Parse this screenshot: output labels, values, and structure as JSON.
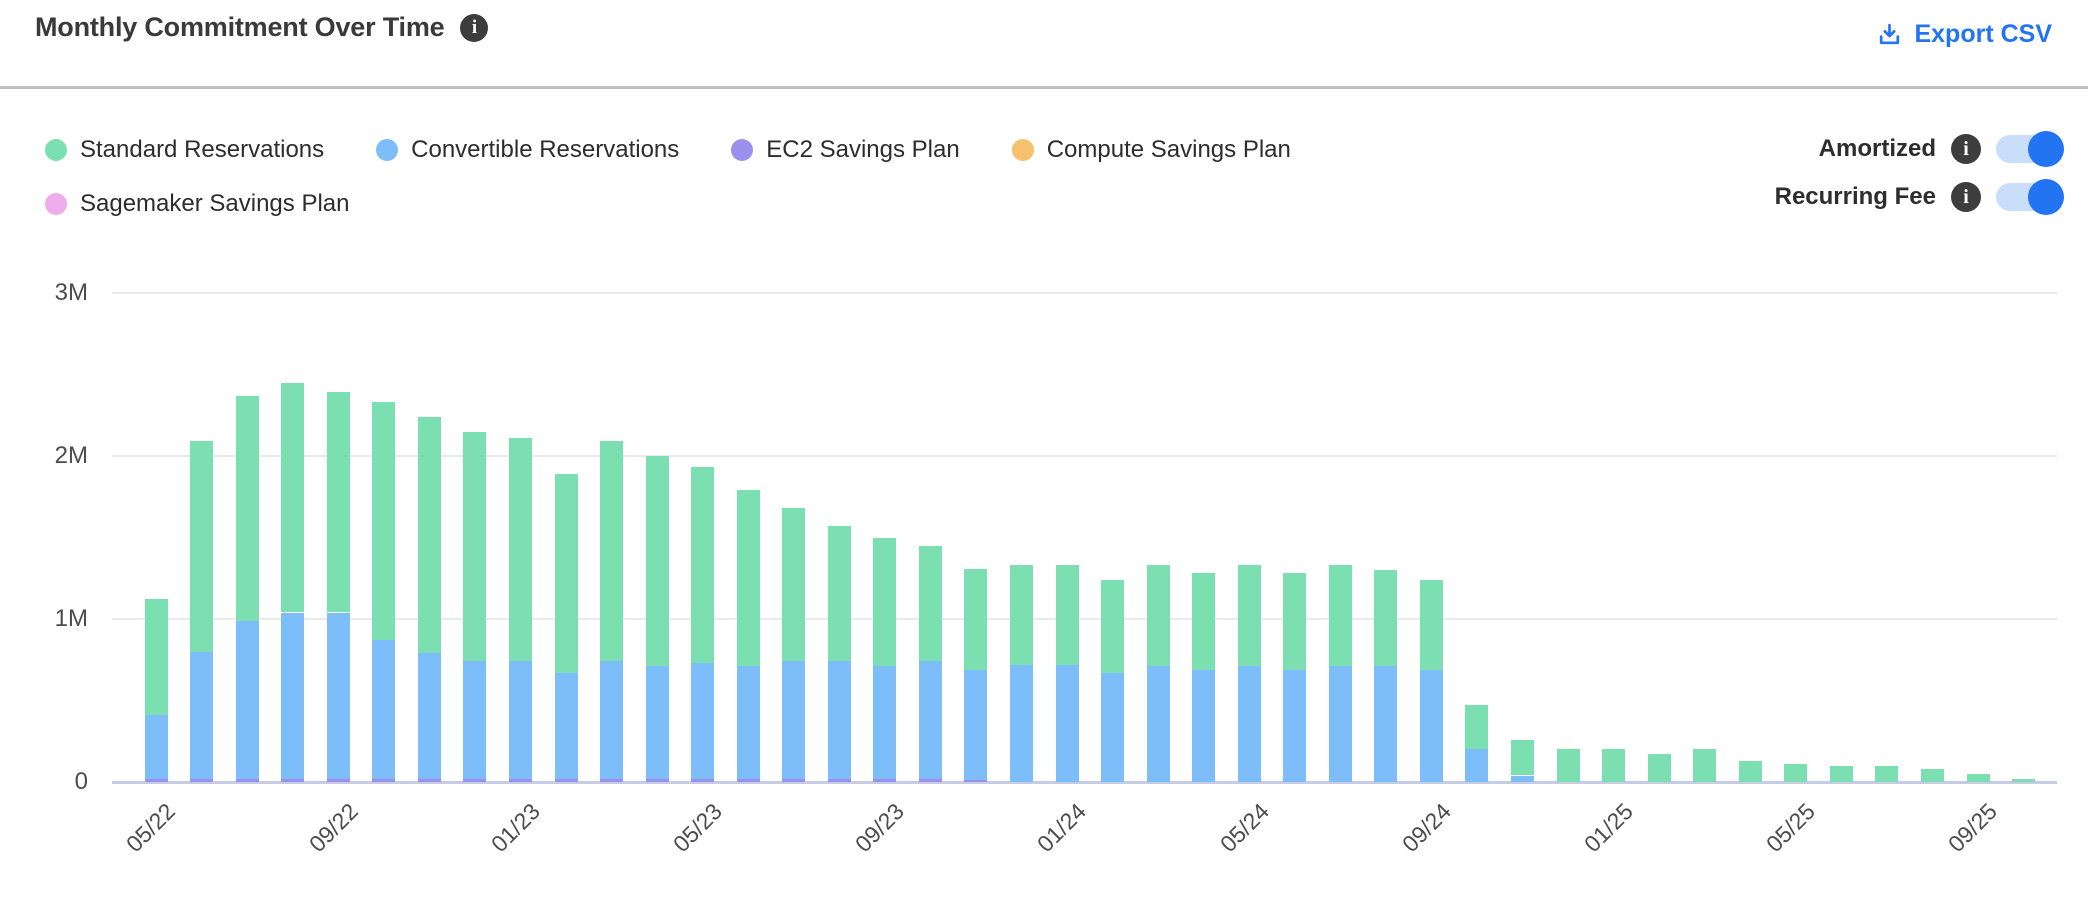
{
  "header": {
    "title": "Monthly Commitment Over Time",
    "export_label": "Export CSV"
  },
  "toggles": [
    {
      "label": "Amortized",
      "state": "on"
    },
    {
      "label": "Recurring Fee",
      "state": "on"
    }
  ],
  "colors": {
    "accent_blue": "#2374f2",
    "toggle_track": "#c9defb",
    "info_icon_bg": "#3d3d3d"
  },
  "chart_data": {
    "type": "bar",
    "stacked": true,
    "title": "Monthly Commitment Over Time",
    "unit": "M",
    "ylim": [
      0,
      3
    ],
    "grid": true,
    "legend_position": "top-left",
    "yticks": [
      {
        "value": 0,
        "label": "0"
      },
      {
        "value": 1,
        "label": "1M"
      },
      {
        "value": 2,
        "label": "2M"
      },
      {
        "value": 3,
        "label": "3M"
      }
    ],
    "x_ticks": [
      {
        "index": 0,
        "label": "05/22"
      },
      {
        "index": 4,
        "label": "09/22"
      },
      {
        "index": 8,
        "label": "01/23"
      },
      {
        "index": 12,
        "label": "05/23"
      },
      {
        "index": 16,
        "label": "09/23"
      },
      {
        "index": 20,
        "label": "01/24"
      },
      {
        "index": 24,
        "label": "05/24"
      },
      {
        "index": 28,
        "label": "09/24"
      },
      {
        "index": 32,
        "label": "01/25"
      },
      {
        "index": 36,
        "label": "05/25"
      },
      {
        "index": 40,
        "label": "09/25"
      }
    ],
    "categories": [
      "05/22",
      "06/22",
      "07/22",
      "08/22",
      "09/22",
      "10/22",
      "11/22",
      "12/22",
      "01/23",
      "02/23",
      "03/23",
      "04/23",
      "05/23",
      "06/23",
      "07/23",
      "08/23",
      "09/23",
      "10/23",
      "11/23",
      "12/23",
      "01/24",
      "02/24",
      "03/24",
      "04/24",
      "05/24",
      "06/24",
      "07/24",
      "08/24",
      "09/24",
      "10/24",
      "11/24",
      "12/24",
      "01/25",
      "02/25",
      "03/25",
      "04/25",
      "05/25",
      "06/25",
      "07/25",
      "08/25",
      "09/25",
      "10/25"
    ],
    "stack_order_bottom_to_top": [
      "EC2 Savings Plan",
      "Convertible Reservations",
      "Standard Reservations",
      "Compute Savings Plan",
      "Sagemaker Savings Plan"
    ],
    "series": [
      {
        "name": "Standard Reservations",
        "color": "#7bdfb1",
        "values": [
          0.71,
          1.29,
          1.38,
          1.41,
          1.35,
          1.46,
          1.45,
          1.41,
          1.37,
          1.22,
          1.35,
          1.29,
          1.2,
          1.08,
          0.94,
          0.83,
          0.79,
          0.71,
          0.62,
          0.61,
          0.61,
          0.57,
          0.62,
          0.59,
          0.62,
          0.59,
          0.62,
          0.59,
          0.55,
          0.27,
          0.22,
          0.2,
          0.2,
          0.17,
          0.2,
          0.13,
          0.11,
          0.1,
          0.1,
          0.08,
          0.05,
          0.02
        ]
      },
      {
        "name": "Convertible Reservations",
        "color": "#7dbdfa",
        "values": [
          0.39,
          0.78,
          0.97,
          1.02,
          1.02,
          0.85,
          0.77,
          0.72,
          0.72,
          0.65,
          0.72,
          0.69,
          0.71,
          0.69,
          0.72,
          0.72,
          0.69,
          0.72,
          0.675,
          0.72,
          0.72,
          0.67,
          0.71,
          0.69,
          0.71,
          0.69,
          0.71,
          0.71,
          0.69,
          0.2,
          0.04,
          0,
          0,
          0,
          0,
          0,
          0,
          0,
          0,
          0,
          0,
          0
        ]
      },
      {
        "name": "EC2 Savings Plan",
        "color": "#9c90ee",
        "values": [
          0.02,
          0.02,
          0.02,
          0.02,
          0.02,
          0.02,
          0.02,
          0.02,
          0.02,
          0.02,
          0.02,
          0.02,
          0.02,
          0.02,
          0.02,
          0.02,
          0.02,
          0.02,
          0.015,
          0,
          0,
          0,
          0,
          0,
          0,
          0,
          0,
          0,
          0,
          0,
          0,
          0,
          0,
          0,
          0,
          0,
          0,
          0,
          0,
          0,
          0,
          0
        ]
      },
      {
        "name": "Compute Savings Plan",
        "color": "#f6c06d",
        "values": [
          0,
          0,
          0,
          0,
          0,
          0,
          0,
          0,
          0,
          0,
          0,
          0,
          0,
          0,
          0,
          0,
          0,
          0,
          0,
          0,
          0,
          0,
          0,
          0,
          0,
          0,
          0,
          0,
          0,
          0,
          0,
          0,
          0,
          0,
          0,
          0,
          0,
          0,
          0,
          0,
          0,
          0
        ]
      },
      {
        "name": "Sagemaker Savings Plan",
        "color": "#f0abea",
        "values": [
          0,
          0,
          0,
          0,
          0,
          0,
          0,
          0,
          0,
          0,
          0,
          0,
          0,
          0,
          0,
          0,
          0,
          0,
          0,
          0,
          0,
          0,
          0,
          0,
          0,
          0,
          0,
          0,
          0,
          0,
          0,
          0,
          0,
          0,
          0,
          0,
          0,
          0,
          0,
          0,
          0,
          0
        ]
      }
    ]
  }
}
